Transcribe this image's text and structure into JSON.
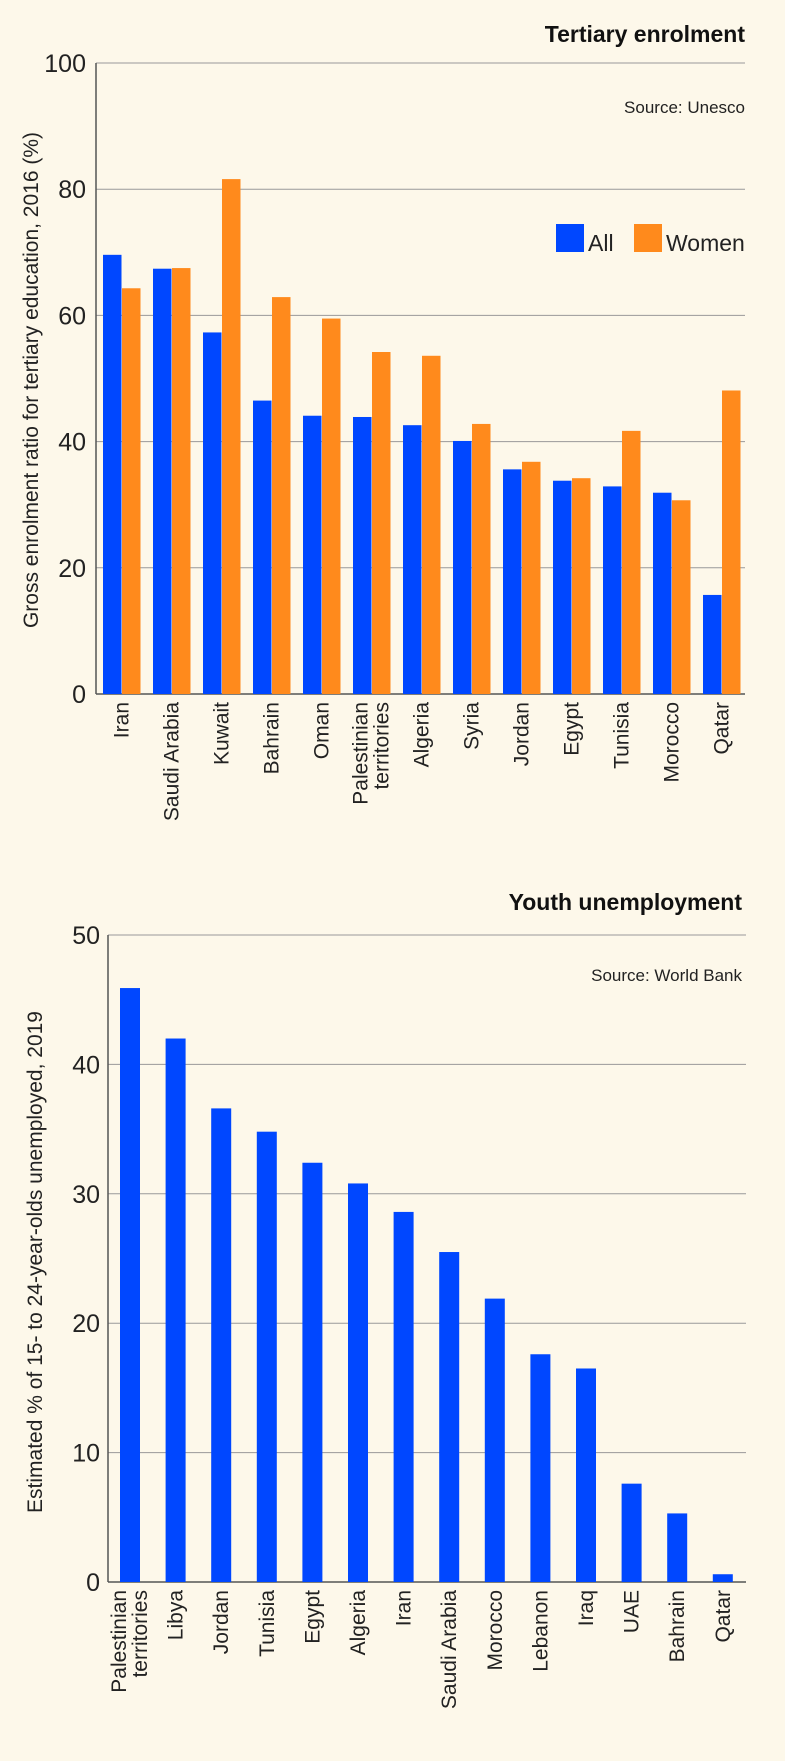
{
  "colors": {
    "background": "#fdf8ea",
    "all": "#0047ff",
    "women": "#ff8a1c",
    "grid": "#999999"
  },
  "chart_data": [
    {
      "type": "bar",
      "title": "Tertiary enrolment",
      "source": "Source: Unesco",
      "ylabel": "Gross enrolment ratio for tertiary education, 2016 (%)",
      "xlabel": "",
      "ylim": [
        0,
        100
      ],
      "yticks": [
        0,
        20,
        40,
        60,
        80,
        100
      ],
      "grid": true,
      "legend": "top-right",
      "categories": [
        "Iran",
        "Saudi Arabia",
        "Kuwait",
        "Bahrain",
        "Oman",
        "Palestinian territories",
        "Algeria",
        "Syria",
        "Jordan",
        "Egypt",
        "Tunisia",
        "Morocco",
        "Qatar"
      ],
      "series": [
        {
          "name": "All",
          "color": "#0047ff",
          "values": [
            69.6,
            67.4,
            57.3,
            46.5,
            44.1,
            43.9,
            42.6,
            40.1,
            35.6,
            33.8,
            32.9,
            31.9,
            15.7
          ]
        },
        {
          "name": "Women",
          "color": "#ff8a1c",
          "values": [
            64.3,
            67.5,
            81.6,
            62.9,
            59.5,
            54.2,
            53.6,
            42.8,
            36.8,
            34.2,
            41.7,
            30.7,
            48.1
          ]
        }
      ]
    },
    {
      "type": "bar",
      "title": "Youth unemployment",
      "source": "Source: World Bank",
      "ylabel": "Estimated % of 15- to 24-year-olds unemployed, 2019",
      "xlabel": "",
      "ylim": [
        0,
        50
      ],
      "yticks": [
        0,
        10,
        20,
        30,
        40,
        50
      ],
      "grid": true,
      "categories": [
        "Palestinian territories",
        "Libya",
        "Jordan",
        "Tunisia",
        "Egypt",
        "Algeria",
        "Iran",
        "Saudi Arabia",
        "Morocco",
        "Lebanon",
        "Iraq",
        "UAE",
        "Bahrain",
        "Qatar"
      ],
      "series": [
        {
          "color": "#0047ff",
          "values": [
            45.9,
            42.0,
            36.6,
            34.8,
            32.4,
            30.8,
            28.6,
            25.5,
            21.9,
            17.6,
            16.5,
            7.6,
            5.3,
            0.6
          ]
        }
      ]
    }
  ]
}
